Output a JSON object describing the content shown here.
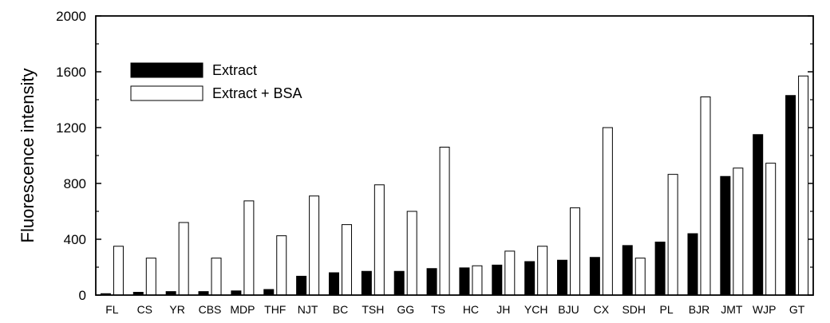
{
  "chart_data": {
    "type": "bar",
    "title": "",
    "xlabel": "",
    "ylabel": "Fluorescence intensity",
    "ylim": [
      0,
      2000
    ],
    "yticks": [
      0,
      400,
      800,
      1200,
      1600,
      2000
    ],
    "grid": false,
    "legend_position": "top-left",
    "categories": [
      "FL",
      "CS",
      "YR",
      "CBS",
      "MDP",
      "THF",
      "NJT",
      "BC",
      "TSH",
      "GG",
      "TS",
      "HC",
      "JH",
      "YCH",
      "BJU",
      "CX",
      "SDH",
      "PL",
      "BJR",
      "JMT",
      "WJP",
      "GT"
    ],
    "series": [
      {
        "name": "Extract",
        "color": "#000000",
        "values": [
          10,
          20,
          25,
          25,
          30,
          40,
          135,
          160,
          170,
          170,
          190,
          195,
          215,
          240,
          250,
          270,
          355,
          380,
          440,
          850,
          1150,
          1430
        ]
      },
      {
        "name": "Extract + BSA",
        "color": "#ffffff",
        "values": [
          350,
          265,
          520,
          265,
          675,
          425,
          710,
          505,
          790,
          600,
          1060,
          210,
          315,
          350,
          625,
          1200,
          265,
          865,
          1420,
          910,
          945,
          1570
        ]
      }
    ]
  }
}
